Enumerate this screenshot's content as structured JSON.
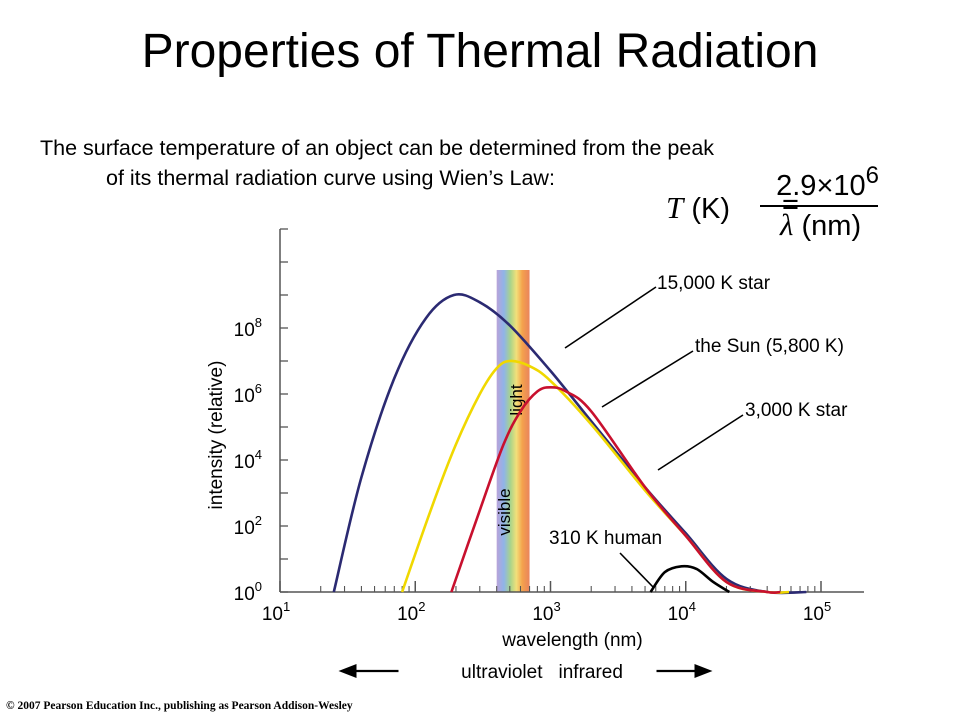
{
  "slide": {
    "title": "Properties of Thermal Radiation",
    "intro_line1": "The surface temperature of an object can be determined from the peak",
    "intro_line2": "of its thermal radiation curve using Wien’s Law:",
    "formula": {
      "lhs_var": "T",
      "lhs_unit": "(K)",
      "equals": "=",
      "numerator_mantissa": "2.9",
      "times": "×",
      "numerator_base": "10",
      "numerator_exponent": "6",
      "denominator_var": "λ",
      "denominator_unit": "(nm)"
    },
    "copyright": "© 2007 Pearson Education Inc., publishing as Pearson Addison-Wesley"
  },
  "chart_data": {
    "type": "line",
    "xscale": "log",
    "yscale": "log",
    "xlabel": "wavelength (nm)",
    "ylabel": "intensity (relative)",
    "xlim": [
      10,
      100000
    ],
    "ylim": [
      1,
      100000000000
    ],
    "x_ticks": [
      {
        "base": "10",
        "exp": "1"
      },
      {
        "base": "10",
        "exp": "2"
      },
      {
        "base": "10",
        "exp": "3"
      },
      {
        "base": "10",
        "exp": "4"
      },
      {
        "base": "10",
        "exp": "5"
      }
    ],
    "y_ticks": [
      {
        "base": "10",
        "exp": "0"
      },
      {
        "base": "10",
        "exp": "2"
      },
      {
        "base": "10",
        "exp": "4"
      },
      {
        "base": "10",
        "exp": "6"
      },
      {
        "base": "10",
        "exp": "8"
      }
    ],
    "series": [
      {
        "name": "15,000 K star",
        "color": "#2b2a72",
        "x": [
          25,
          40,
          70,
          120,
          193,
          300,
          500,
          1000,
          2000,
          5000,
          10000,
          20000,
          40000,
          78000
        ],
        "y": [
          1,
          3000,
          3000000,
          200000000,
          1000000000,
          600000000,
          120000000,
          5000000,
          150000,
          1500,
          60,
          2.5,
          0.1,
          1
        ]
      },
      {
        "name": "the Sun (5,800 K)",
        "color": "#f0d800",
        "x": [
          80,
          130,
          200,
          300,
          400,
          500,
          700,
          1000,
          2000,
          5000,
          10000,
          20000,
          40000,
          58000
        ],
        "y": [
          1,
          300,
          30000,
          1000000,
          6000000,
          10000000,
          7000000,
          2500000,
          120000,
          1200,
          50,
          2,
          0.1,
          1
        ]
      },
      {
        "name": "3,000 K star",
        "color": "#c8102e",
        "x": [
          185,
          300,
          450,
          600,
          800,
          1000,
          1300,
          2000,
          5000,
          10000,
          20000,
          40000,
          50000
        ],
        "y": [
          1,
          300,
          30000,
          300000,
          1200000,
          1600000,
          1200000,
          300000,
          1500,
          50,
          2,
          0.1,
          1
        ]
      },
      {
        "name": "310 K human",
        "color": "#000000",
        "x": [
          5500,
          7000,
          9300,
          12000,
          16000,
          21000
        ],
        "y": [
          1,
          4,
          6,
          5,
          2,
          1
        ]
      }
    ],
    "visible_band": {
      "from": 400,
      "to": 700,
      "label_left": "visible",
      "label_right": "light"
    },
    "annotations": {
      "arrow_left": "ultraviolet",
      "arrow_right": "infrared"
    },
    "grid": false,
    "legend": "callout labels"
  }
}
